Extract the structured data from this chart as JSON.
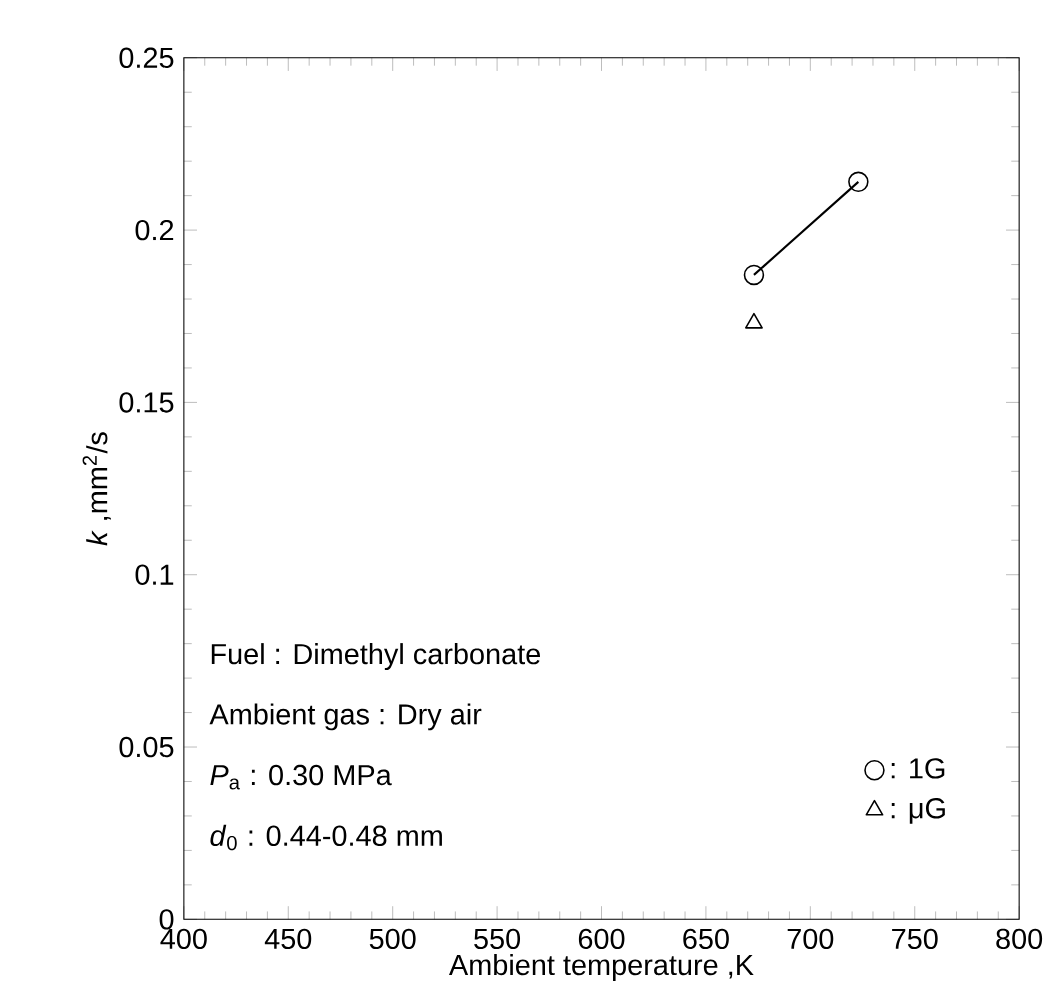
{
  "chart_data": {
    "type": "line",
    "xlabel": "Ambient temperature ,K",
    "ylabel": "*k* ,mm$^{2}$/s",
    "xlim": [
      400,
      800
    ],
    "xticks": [
      400,
      450,
      500,
      550,
      600,
      650,
      700,
      750,
      800
    ],
    "ylim": [
      0,
      0.25
    ],
    "yticks": [
      0,
      0.05,
      0.1,
      0.15,
      0.2,
      0.25
    ],
    "x": [
      673,
      723
    ],
    "series": [
      {
        "name": ": 1G",
        "marker": "circle",
        "color": "#000000",
        "values": [
          0.187,
          0.214
        ]
      },
      {
        "name": ": μG",
        "type": "scatter",
        "marker": "triangle",
        "color": "#000000",
        "x": [
          673
        ],
        "values": [
          0.173
        ]
      }
    ],
    "legend": "bottom right",
    "annotations": [
      "Fuel : Dimethyl carbonate",
      "Ambient gas : Dry air",
      "*P*$_{a}$ : 0.30 MPa",
      "*d*$_{0}$ : 0.44-0.48 mm"
    ]
  }
}
